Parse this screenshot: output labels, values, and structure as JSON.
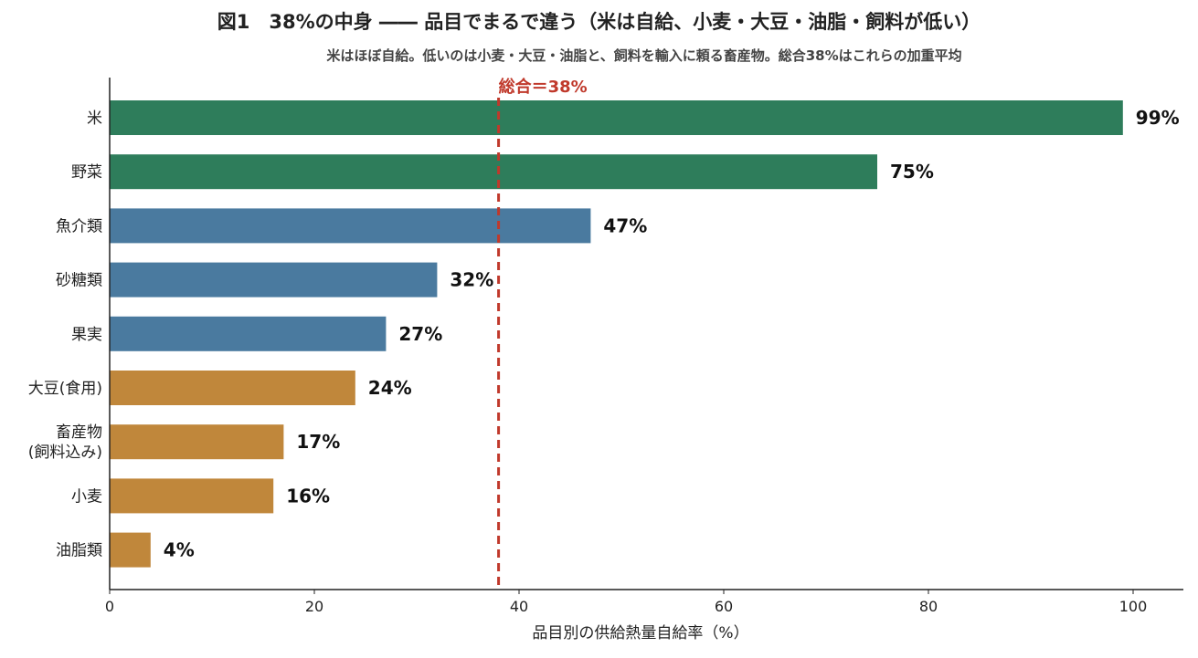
{
  "title": "図1　38%の中身 ―― 品目でまるで違う（米は自給、小麦・大豆・油脂・飼料が低い）",
  "subtitle": "米はほぼ自給。低いのは小麦・大豆・油脂と、飼料を輸入に頼る畜産物。総合38%はこれらの加重平均",
  "colors": {
    "green": "#2e7d5b",
    "blue": "#4a7a9f",
    "orange": "#c0873b",
    "reference": "#c0392b",
    "axis": "#222222"
  },
  "chart_data": {
    "type": "bar",
    "orientation": "horizontal",
    "title": "図1　38%の中身 ―― 品目でまるで違う（米は自給、小麦・大豆・油脂・飼料が低い）",
    "subtitle": "米はほぼ自給。低いのは小麦・大豆・油脂と、飼料を輸入に頼る畜産物。総合38%はこれらの加重平均",
    "xlabel": "品目別の供給熱量自給率（%）",
    "ylabel": "",
    "xlim": [
      0,
      105
    ],
    "xticks": [
      0,
      20,
      40,
      60,
      80,
      100
    ],
    "grid": false,
    "categories": [
      [
        "米"
      ],
      [
        "野菜"
      ],
      [
        "魚介類"
      ],
      [
        "砂糖類"
      ],
      [
        "果実"
      ],
      [
        "大豆(食用)"
      ],
      [
        "畜産物",
        "(飼料込み)"
      ],
      [
        "小麦"
      ],
      [
        "油脂類"
      ]
    ],
    "values": [
      99,
      75,
      47,
      32,
      27,
      24,
      17,
      16,
      4
    ],
    "value_labels": [
      "99%",
      "75%",
      "47%",
      "32%",
      "27%",
      "24%",
      "17%",
      "16%",
      "4%"
    ],
    "bar_colors": [
      "green",
      "green",
      "blue",
      "blue",
      "blue",
      "orange",
      "orange",
      "orange",
      "orange"
    ],
    "reference_line": {
      "value": 38,
      "label": "総合＝38%",
      "style": "dashed"
    }
  }
}
